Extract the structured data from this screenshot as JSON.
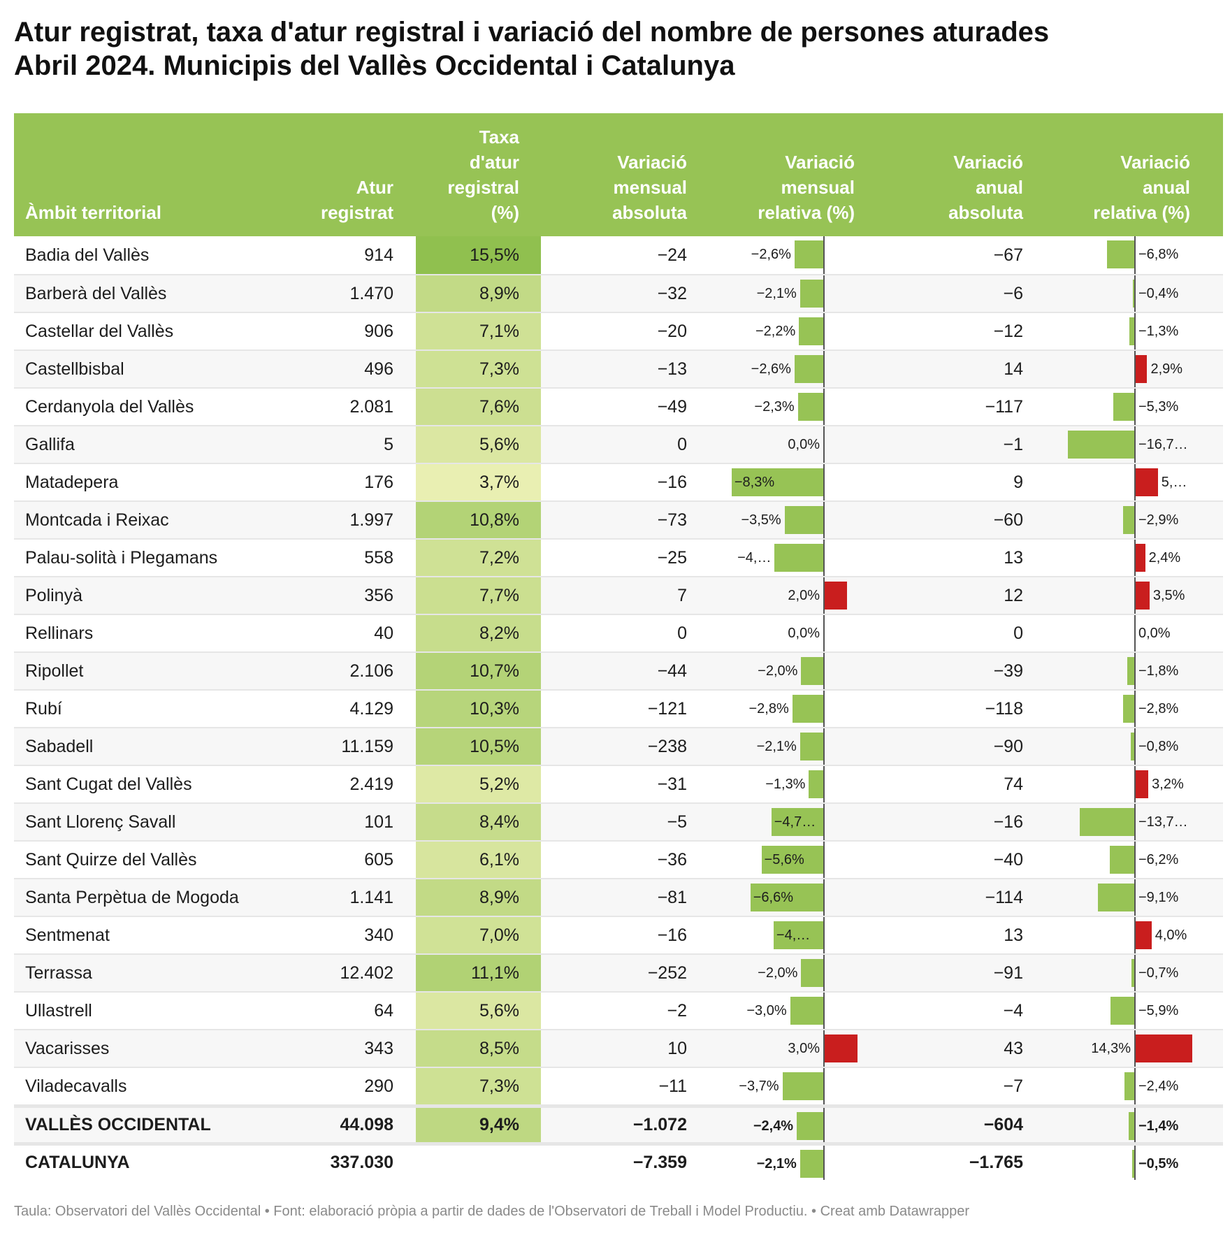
{
  "title": [
    "Atur registrat, taxa d'atur registral i variació del nombre de persones aturades",
    "Abril 2024. Municipis del Vallès Occidental i Catalunya"
  ],
  "headers": [
    "Àmbit territorial",
    "Atur\nregistrat",
    "Taxa\nd'atur\nregistral\n(%)",
    "Variació\nmensual\nabsoluta",
    "Variació\nmensual\nrelativa (%)",
    "Variació\nanual\nabsoluta",
    "Variació\nanual\nrelativa (%)"
  ],
  "colors": {
    "header": "#97c355",
    "negative": "#97c355",
    "positive": "#c91e1e",
    "scale_low": "#e9efb2",
    "scale_high": "#90c04f"
  },
  "footer": "Taula: Observatori del Vallès Occidental • Font: elaboració pròpia a partir de dades de l'Observatori de Treball i Model Productiu.  • Creat amb Datawrapper",
  "chart_data": {
    "type": "table",
    "columns": [
      "Àmbit territorial",
      "Atur registrat",
      "Taxa d'atur registral (%)",
      "Variació mensual absoluta",
      "Variació mensual relativa (%)",
      "Variació anual absoluta",
      "Variació anual relativa (%)"
    ],
    "rows": [
      [
        "Badia del Vallès",
        "914",
        "15,5%",
        "−24",
        "−2,6%",
        -2.6,
        "−67",
        "−6,8%",
        -6.8
      ],
      [
        "Barberà del Vallès",
        "1.470",
        "8,9%",
        "−32",
        "−2,1%",
        -2.1,
        "−6",
        "−0,4%",
        -0.4
      ],
      [
        "Castellar del Vallès",
        "906",
        "7,1%",
        "−20",
        "−2,2%",
        -2.2,
        "−12",
        "−1,3%",
        -1.3
      ],
      [
        "Castellbisbal",
        "496",
        "7,3%",
        "−13",
        "−2,6%",
        -2.6,
        "14",
        "2,9%",
        2.9
      ],
      [
        "Cerdanyola del Vallès",
        "2.081",
        "7,6%",
        "−49",
        "−2,3%",
        -2.3,
        "−117",
        "−5,3%",
        -5.3
      ],
      [
        "Gallifa",
        "5",
        "5,6%",
        "0",
        "0,0%",
        0,
        "−1",
        "−16,7…",
        -16.7
      ],
      [
        "Matadepera",
        "176",
        "3,7%",
        "−16",
        "−8,3%",
        -8.3,
        "9",
        "5,…",
        5.6
      ],
      [
        "Montcada i Reixac",
        "1.997",
        "10,8%",
        "−73",
        "−3,5%",
        -3.5,
        "−60",
        "−2,9%",
        -2.9
      ],
      [
        "Palau-solità i Plegamans",
        "558",
        "7,2%",
        "−25",
        "−4,…",
        -4.4,
        "13",
        "2,4%",
        2.4
      ],
      [
        "Polinyà",
        "356",
        "7,7%",
        "7",
        "2,0%",
        2.0,
        "12",
        "3,5%",
        3.5
      ],
      [
        "Rellinars",
        "40",
        "8,2%",
        "0",
        "0,0%",
        0,
        "0",
        "0,0%",
        0
      ],
      [
        "Ripollet",
        "2.106",
        "10,7%",
        "−44",
        "−2,0%",
        -2.0,
        "−39",
        "−1,8%",
        -1.8
      ],
      [
        "Rubí",
        "4.129",
        "10,3%",
        "−121",
        "−2,8%",
        -2.8,
        "−118",
        "−2,8%",
        -2.8
      ],
      [
        "Sabadell",
        "11.159",
        "10,5%",
        "−238",
        "−2,1%",
        -2.1,
        "−90",
        "−0,8%",
        -0.8
      ],
      [
        "Sant Cugat del Vallès",
        "2.419",
        "5,2%",
        "−31",
        "−1,3%",
        -1.3,
        "74",
        "3,2%",
        3.2
      ],
      [
        "Sant Llorenç Savall",
        "101",
        "8,4%",
        "−5",
        "−4,7…",
        -4.7,
        "−16",
        "−13,7…",
        -13.7
      ],
      [
        "Sant Quirze del Vallès",
        "605",
        "6,1%",
        "−36",
        "−5,6%",
        -5.6,
        "−40",
        "−6,2%",
        -6.2
      ],
      [
        "Santa Perpètua de Mogoda",
        "1.141",
        "8,9%",
        "−81",
        "−6,6%",
        -6.6,
        "−114",
        "−9,1%",
        -9.1
      ],
      [
        "Sentmenat",
        "340",
        "7,0%",
        "−16",
        "−4,…",
        -4.5,
        "13",
        "4,0%",
        4.0
      ],
      [
        "Terrassa",
        "12.402",
        "11,1%",
        "−252",
        "−2,0%",
        -2.0,
        "−91",
        "−0,7%",
        -0.7
      ],
      [
        "Ullastrell",
        "64",
        "5,6%",
        "−2",
        "−3,0%",
        -3.0,
        "−4",
        "−5,9%",
        -5.9
      ],
      [
        "Vacarisses",
        "343",
        "8,5%",
        "10",
        "3,0%",
        3.0,
        "43",
        "14,3%",
        14.3
      ],
      [
        "Viladecavalls",
        "290",
        "7,3%",
        "−11",
        "−3,7%",
        -3.7,
        "−7",
        "−2,4%",
        -2.4
      ],
      [
        "VALLÈS OCCIDENTAL",
        "44.098",
        "9,4%",
        "−1.072",
        "−2,4%",
        -2.4,
        "−604",
        "−1,4%",
        -1.4
      ],
      [
        "CATALUNYA",
        "337.030",
        "",
        "−7.359",
        "−2,1%",
        -2.1,
        "−1.765",
        "−0,5%",
        -0.5
      ]
    ],
    "total_rows": [
      "VALLÈS OCCIDENTAL",
      "CATALUNYA"
    ],
    "taxa_scale_domain": [
      3.7,
      15.5
    ]
  }
}
